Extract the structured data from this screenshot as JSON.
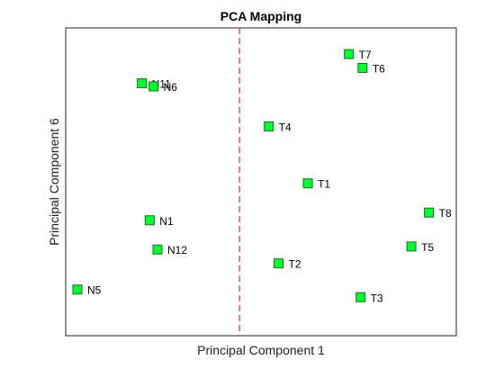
{
  "chart_data": {
    "type": "scatter",
    "title": "PCA Mapping",
    "xlabel": "Principal Component 1",
    "ylabel": "Principal Component 6",
    "xlim": [
      -1,
      1
    ],
    "ylim": [
      -1,
      1
    ],
    "grid": false,
    "ticks_visible": false,
    "marker_color": "#00ff33",
    "marker_edge": "#1a6b1a",
    "divider_color": "#d9333f",
    "divider_x": -0.11,
    "points": [
      {
        "label": "N11",
        "x": -0.61,
        "y": 0.64
      },
      {
        "label": "N6",
        "x": -0.55,
        "y": 0.62
      },
      {
        "label": "N1",
        "x": -0.57,
        "y": -0.25
      },
      {
        "label": "N12",
        "x": -0.53,
        "y": -0.44
      },
      {
        "label": "N5",
        "x": -0.94,
        "y": -0.7
      },
      {
        "label": "T7",
        "x": 0.45,
        "y": 0.83
      },
      {
        "label": "T6",
        "x": 0.52,
        "y": 0.74
      },
      {
        "label": "T4",
        "x": 0.04,
        "y": 0.36
      },
      {
        "label": "T1",
        "x": 0.24,
        "y": -0.01
      },
      {
        "label": "T8",
        "x": 0.86,
        "y": -0.2
      },
      {
        "label": "T5",
        "x": 0.77,
        "y": -0.42
      },
      {
        "label": "T2",
        "x": 0.09,
        "y": -0.53
      },
      {
        "label": "T3",
        "x": 0.51,
        "y": -0.75
      }
    ]
  }
}
